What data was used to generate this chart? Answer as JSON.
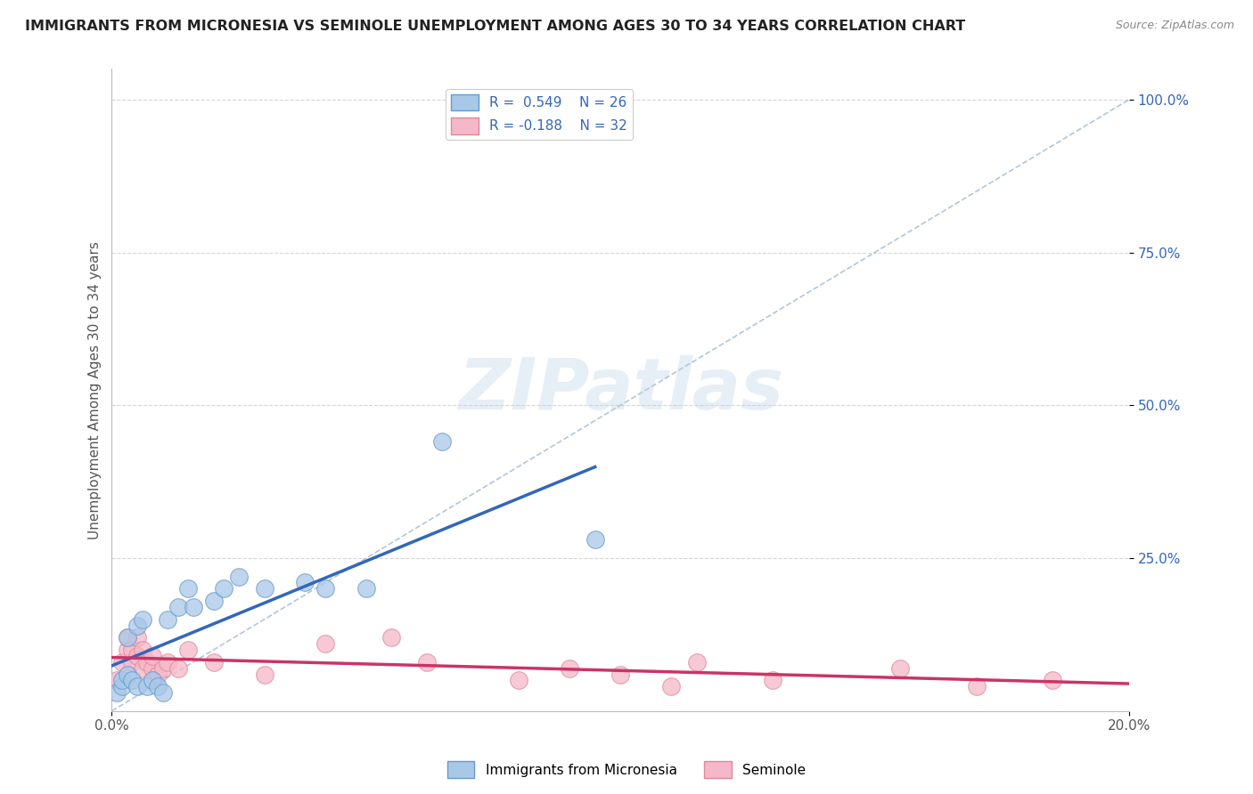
{
  "title": "IMMIGRANTS FROM MICRONESIA VS SEMINOLE UNEMPLOYMENT AMONG AGES 30 TO 34 YEARS CORRELATION CHART",
  "source": "Source: ZipAtlas.com",
  "ylabel": "Unemployment Among Ages 30 to 34 years",
  "xlim": [
    0.0,
    0.2
  ],
  "ylim": [
    0.0,
    1.05
  ],
  "xticks": [
    0.0,
    0.2
  ],
  "xticklabels": [
    "0.0%",
    "20.0%"
  ],
  "yticks": [
    0.25,
    0.5,
    0.75,
    1.0
  ],
  "yticklabels": [
    "25.0%",
    "50.0%",
    "75.0%",
    "100.0%"
  ],
  "blue_scatter_x": [
    0.001,
    0.002,
    0.002,
    0.003,
    0.003,
    0.004,
    0.005,
    0.005,
    0.006,
    0.007,
    0.008,
    0.009,
    0.01,
    0.011,
    0.013,
    0.015,
    0.016,
    0.02,
    0.022,
    0.025,
    0.03,
    0.038,
    0.042,
    0.05,
    0.065,
    0.095
  ],
  "blue_scatter_y": [
    0.03,
    0.04,
    0.05,
    0.06,
    0.12,
    0.05,
    0.04,
    0.14,
    0.15,
    0.04,
    0.05,
    0.04,
    0.03,
    0.15,
    0.17,
    0.2,
    0.17,
    0.18,
    0.2,
    0.22,
    0.2,
    0.21,
    0.2,
    0.2,
    0.44,
    0.28
  ],
  "pink_scatter_x": [
    0.001,
    0.002,
    0.003,
    0.003,
    0.004,
    0.004,
    0.005,
    0.005,
    0.006,
    0.006,
    0.007,
    0.008,
    0.008,
    0.009,
    0.01,
    0.011,
    0.013,
    0.015,
    0.02,
    0.03,
    0.042,
    0.055,
    0.062,
    0.08,
    0.09,
    0.1,
    0.11,
    0.115,
    0.13,
    0.155,
    0.17,
    0.185
  ],
  "pink_scatter_y": [
    0.05,
    0.08,
    0.1,
    0.12,
    0.08,
    0.1,
    0.09,
    0.12,
    0.07,
    0.1,
    0.08,
    0.07,
    0.09,
    0.06,
    0.07,
    0.08,
    0.07,
    0.1,
    0.08,
    0.06,
    0.11,
    0.12,
    0.08,
    0.05,
    0.07,
    0.06,
    0.04,
    0.08,
    0.05,
    0.07,
    0.04,
    0.05
  ],
  "blue_color": "#a8c8e8",
  "blue_edge_color": "#6699cc",
  "pink_color": "#f4b8c8",
  "pink_edge_color": "#e08898",
  "blue_line_color": "#3366bb",
  "pink_line_color": "#cc3366",
  "diagonal_color": "#a0b8d0",
  "R_blue": 0.549,
  "N_blue": 26,
  "R_pink": -0.188,
  "N_pink": 32,
  "watermark": "ZIPatlas",
  "background_color": "#ffffff",
  "grid_color": "#cccccc",
  "title_fontsize": 11.5,
  "label_fontsize": 11,
  "tick_fontsize": 11,
  "legend_fontsize": 11
}
